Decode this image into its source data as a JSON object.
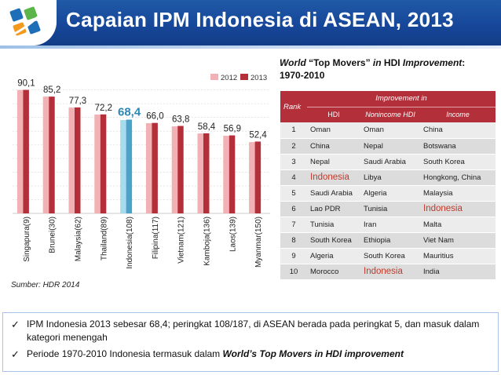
{
  "header": {
    "title": "Capaian IPM Indonesia di ASEAN, 2013"
  },
  "chart_data": {
    "type": "bar",
    "title": "",
    "xlabel": "",
    "ylabel": "",
    "categories": [
      "Singapura(9)",
      "Brunei(30)",
      "Malaysia(62)",
      "Thailand(89)",
      "Indonesia(108)",
      "Filipina(117)",
      "Vietnam(121)",
      "Kamboja(136)",
      "Laos(139)",
      "Myanmar(150)"
    ],
    "series": [
      {
        "name": "2012",
        "values": [
          90.0,
          85.2,
          77.2,
          72.1,
          68.1,
          65.8,
          63.5,
          58.3,
          56.6,
          52.0
        ],
        "color": "#f2b1b4",
        "highlight_color": "#a7dcef"
      },
      {
        "name": "2013",
        "values": [
          90.1,
          85.2,
          77.3,
          72.2,
          68.4,
          66.0,
          63.8,
          58.4,
          56.9,
          52.4
        ],
        "color": "#b3303a",
        "highlight_color": "#4ba3c7"
      }
    ],
    "labels": [
      "90,1",
      "85,2",
      "77,3",
      "72,2",
      "68,4",
      "66,0",
      "63,8",
      "58,4",
      "56,9",
      "52,4"
    ],
    "highlight_index": 4,
    "ylim": [
      0,
      95
    ],
    "legend_position": "top-right",
    "grid": true
  },
  "source": "Sumber: HDR 2014",
  "movers": {
    "title_part1": "World",
    "title_part2": " “Top Movers” ",
    "title_part3": "in",
    "title_part4": " HDI ",
    "title_part5": "Improvement",
    "title_part6": ":",
    "title_line2": "1970-2010",
    "improvement_in": "Improvement in",
    "col_rank": "Rank",
    "col_hdi": "HDI",
    "col_nonincome": "Nonincome HDI",
    "col_income": "Income",
    "rows": [
      {
        "rank": "1",
        "hdi": "Oman",
        "nonincome": "Oman",
        "income": "China"
      },
      {
        "rank": "2",
        "hdi": "China",
        "nonincome": "Nepal",
        "income": "Botswana"
      },
      {
        "rank": "3",
        "hdi": "Nepal",
        "nonincome": "Saudi Arabia",
        "income": "South Korea"
      },
      {
        "rank": "4",
        "hdi": "Indonesia",
        "nonincome": "Libya",
        "income": "Hongkong, China"
      },
      {
        "rank": "5",
        "hdi": "Saudi Arabia",
        "nonincome": "Algeria",
        "income": "Malaysia"
      },
      {
        "rank": "6",
        "hdi": "Lao PDR",
        "nonincome": "Tunisia",
        "income": "Indonesia"
      },
      {
        "rank": "7",
        "hdi": "Tunisia",
        "nonincome": "Iran",
        "income": "Malta"
      },
      {
        "rank": "8",
        "hdi": "South Korea",
        "nonincome": "Ethiopia",
        "income": "Viet Nam"
      },
      {
        "rank": "9",
        "hdi": "Algeria",
        "nonincome": "South Korea",
        "income": "Mauritius"
      },
      {
        "rank": "10",
        "hdi": "Morocco",
        "nonincome": "Indonesia",
        "income": "India"
      }
    ],
    "highlight_term": "Indonesia",
    "highlight_color": "#c0392b"
  },
  "notes": {
    "check_icon": "check-icon",
    "b1": "IPM  Indonesia 2013 sebesar 68,4; peringkat 108/187, di ASEAN berada pada peringkat 5, dan masuk dalam kategori menengah",
    "b2_pre": "Periode 1970-2010 Indonesia termasuk dalam ",
    "b2_bold": "World’s Top Movers in HDI improvement"
  }
}
